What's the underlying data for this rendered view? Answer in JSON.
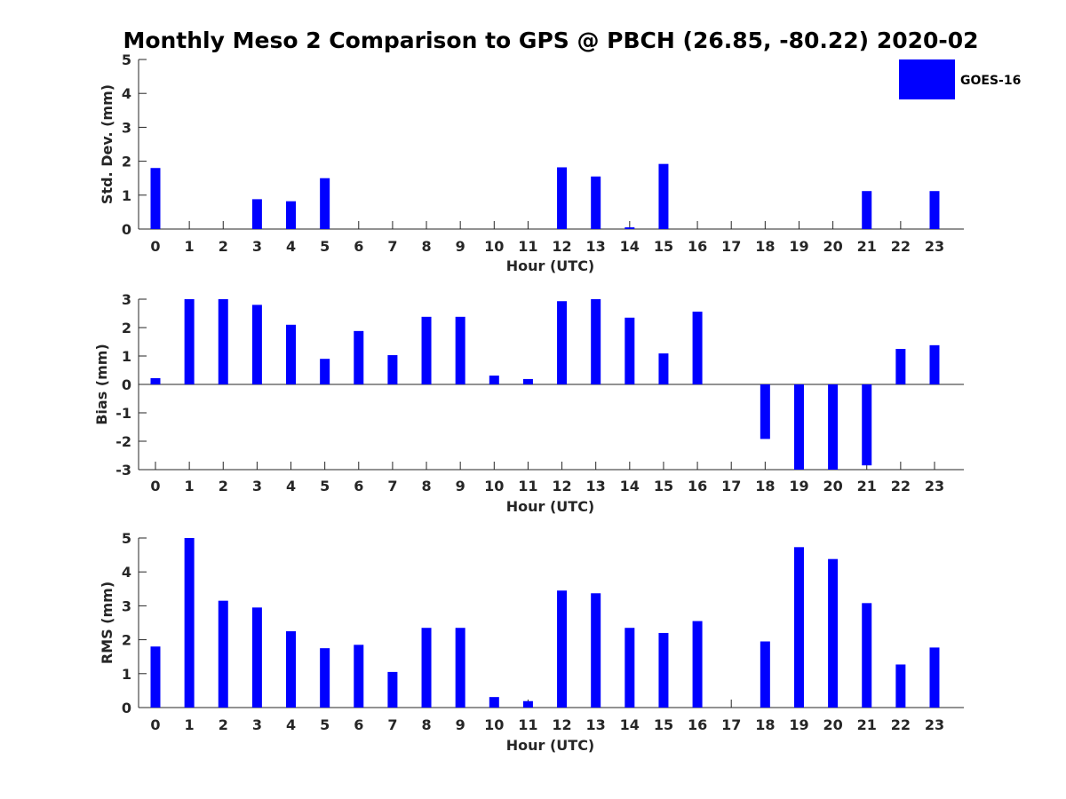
{
  "figure": {
    "title": "Monthly Meso 2 Comparison to GPS @ PBCH (26.85, -80.22) 2020-02"
  },
  "legend": {
    "label": "GOES-16",
    "color": "#0000ff",
    "placement": "top-right"
  },
  "chart_data": [
    {
      "type": "bar",
      "xlabel": "Hour (UTC)",
      "ylabel": "Std. Dev. (mm)",
      "ylim": [
        0,
        5
      ],
      "yticks": [
        0,
        1,
        2,
        3,
        4,
        5
      ],
      "categories": [
        "0",
        "1",
        "2",
        "3",
        "4",
        "5",
        "6",
        "7",
        "8",
        "9",
        "10",
        "11",
        "12",
        "13",
        "14",
        "15",
        "16",
        "17",
        "18",
        "19",
        "20",
        "21",
        "22",
        "23"
      ],
      "series": [
        {
          "name": "GOES-16",
          "color": "#0000ff",
          "values": [
            1.8,
            0,
            0,
            0.88,
            0.82,
            1.5,
            0,
            0,
            0,
            0,
            0,
            0,
            1.82,
            1.55,
            0.05,
            1.92,
            0,
            0,
            0,
            0,
            0,
            1.12,
            0,
            1.12
          ]
        }
      ]
    },
    {
      "type": "bar",
      "xlabel": "Hour (UTC)",
      "ylabel": "Bias (mm)",
      "ylim": [
        -3,
        3
      ],
      "yticks": [
        -3,
        -2,
        -1,
        0,
        1,
        2,
        3
      ],
      "categories": [
        "0",
        "1",
        "2",
        "3",
        "4",
        "5",
        "6",
        "7",
        "8",
        "9",
        "10",
        "11",
        "12",
        "13",
        "14",
        "15",
        "16",
        "17",
        "18",
        "19",
        "20",
        "21",
        "22",
        "23"
      ],
      "series": [
        {
          "name": "GOES-16",
          "color": "#0000ff",
          "values": [
            0.22,
            3.0,
            3.0,
            2.8,
            2.1,
            0.9,
            1.88,
            1.03,
            2.38,
            2.38,
            0.31,
            0.19,
            2.93,
            3.0,
            2.35,
            1.09,
            2.56,
            0,
            -1.92,
            -3.0,
            -3.0,
            -2.85,
            1.25,
            1.38
          ]
        }
      ]
    },
    {
      "type": "bar",
      "xlabel": "Hour (UTC)",
      "ylabel": "RMS (mm)",
      "ylim": [
        0,
        5
      ],
      "yticks": [
        0,
        1,
        2,
        3,
        4,
        5
      ],
      "categories": [
        "0",
        "1",
        "2",
        "3",
        "4",
        "5",
        "6",
        "7",
        "8",
        "9",
        "10",
        "11",
        "12",
        "13",
        "14",
        "15",
        "16",
        "17",
        "18",
        "19",
        "20",
        "21",
        "22",
        "23"
      ],
      "series": [
        {
          "name": "GOES-16",
          "color": "#0000ff",
          "values": [
            1.8,
            5.0,
            3.15,
            2.95,
            2.25,
            1.75,
            1.85,
            1.05,
            2.35,
            2.35,
            0.31,
            0.19,
            3.45,
            3.37,
            2.35,
            2.2,
            2.55,
            0,
            1.95,
            4.73,
            4.38,
            3.08,
            1.27,
            1.77
          ]
        }
      ]
    }
  ]
}
